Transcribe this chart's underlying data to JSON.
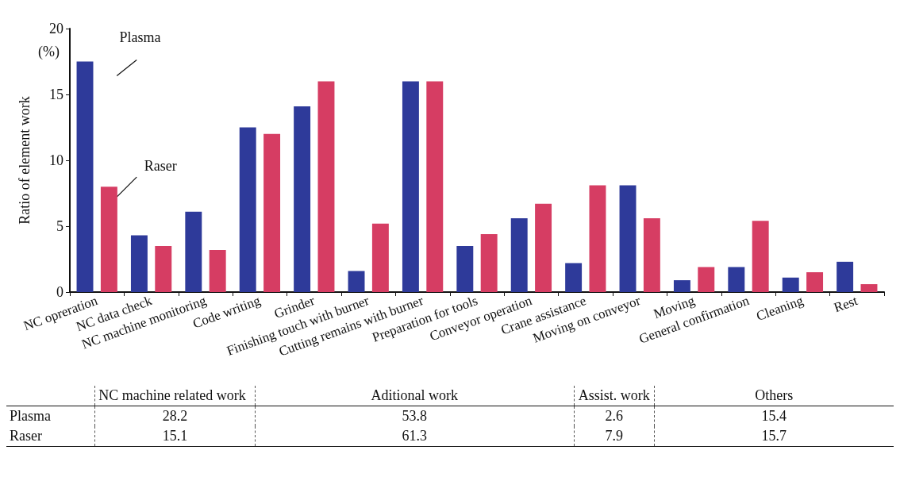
{
  "chart_data": {
    "type": "bar",
    "ylabel": "Ratio of element work",
    "categories": [
      "NC opreration",
      "NC data check",
      "NC machine monitoring",
      "Code writing",
      "Grinder",
      "Finishing touch with burner",
      "Cutting remains with burner",
      "Preparation for tools",
      "Conveyor operation",
      "Crane assistance",
      "Moving on conveyor",
      "Moving",
      "General confirmation",
      "Cleaning",
      "Rest"
    ],
    "series": [
      {
        "name": "Plasma",
        "color": "#2e3a9a",
        "values": [
          17.5,
          4.3,
          6.1,
          12.5,
          14.1,
          1.6,
          16.0,
          3.5,
          5.6,
          2.2,
          8.1,
          0.9,
          1.9,
          1.1,
          2.3
        ]
      },
      {
        "name": "Raser",
        "color": "#d63d63",
        "values": [
          8.0,
          3.5,
          3.2,
          12.0,
          16.0,
          5.2,
          16.0,
          4.4,
          6.7,
          8.1,
          5.6,
          1.9,
          5.4,
          1.5,
          0.6
        ]
      }
    ],
    "ylim": [
      0,
      20
    ],
    "yticks": [
      0,
      5,
      10,
      15,
      20
    ],
    "grid": false,
    "legend": false,
    "annotations": [
      "(%)",
      "NC machine related work",
      "Aditional work",
      "Assist. work",
      "Others",
      "28.2",
      "53.8",
      "2.6",
      "15.4",
      "15.1",
      "61.3",
      "7.9",
      "15.7"
    ]
  }
}
